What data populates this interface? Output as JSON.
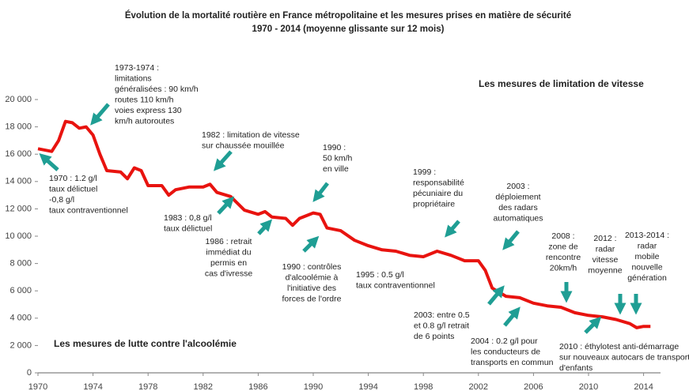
{
  "chart_data": {
    "type": "line",
    "title": [
      "Évolution de la mortalité routière en France métropolitaine et les mesures prises en matière de sécurité",
      "1970 - 2014 (moyenne glissante sur 12 mois)"
    ],
    "x": [
      1970,
      1971,
      1971.5,
      1972,
      1972.5,
      1973,
      1973.5,
      1974,
      1974.5,
      1975,
      1976,
      1976.5,
      1977,
      1977.5,
      1978,
      1979,
      1979.5,
      1980,
      1981,
      1982,
      1982.5,
      1983,
      1984,
      1985,
      1986,
      1986.5,
      1987,
      1988,
      1988.5,
      1989,
      1990,
      1990.5,
      1991,
      1992,
      1993,
      1994,
      1995,
      1996,
      1997,
      1998,
      1999,
      2000,
      2001,
      2002,
      2002.5,
      2003,
      2004,
      2005,
      2006,
      2007,
      2008,
      2009,
      2010,
      2011,
      2012,
      2013,
      2013.5,
      2014,
      2014.5
    ],
    "series": [
      {
        "color": "#e8130f",
        "values": [
          16400,
          16200,
          17000,
          18400,
          18300,
          17900,
          18000,
          17400,
          16000,
          14800,
          14700,
          14200,
          15000,
          14800,
          13700,
          13700,
          13000,
          13400,
          13600,
          13600,
          13800,
          13200,
          12900,
          11900,
          11600,
          11800,
          11400,
          11300,
          10800,
          11300,
          11700,
          11600,
          10600,
          10400,
          9700,
          9300,
          9000,
          8900,
          8600,
          8500,
          8900,
          8600,
          8200,
          8200,
          7500,
          6200,
          5600,
          5500,
          5100,
          4900,
          4800,
          4400,
          4200,
          4100,
          3900,
          3600,
          3300,
          3400,
          3400
        ]
      }
    ],
    "xlim": [
      1970,
      2015
    ],
    "xticks": [
      1970,
      1974,
      1978,
      1982,
      1986,
      1990,
      1994,
      1998,
      2002,
      2006,
      2010,
      2014
    ],
    "ylim": [
      0,
      20000
    ],
    "yticks": [
      0,
      {
        "value": 2000,
        "label": "2 000"
      },
      {
        "value": 4000,
        "label": "4 000"
      },
      {
        "value": 6000,
        "label": "6 000"
      },
      {
        "value": 8000,
        "label": "8 000"
      },
      {
        "value": 10000,
        "label": "10 000"
      },
      {
        "value": 12000,
        "label": "12 000"
      },
      {
        "value": 14000,
        "label": "14 000"
      },
      {
        "value": 16000,
        "label": "16 000"
      },
      {
        "value": 18000,
        "label": "18 000"
      },
      {
        "value": 20000,
        "label": "20 000"
      }
    ],
    "headings": [
      "Les mesures de limitation de vitesse",
      "Les mesures de lutte contre l'alcoolémie"
    ],
    "annotations": [
      [
        "1973-1974 :",
        "limitations",
        "généralisées : 90 km/h",
        "routes 110 km/h",
        "voies express 130",
        "km/h autoroutes"
      ],
      [
        "1982 : limitation de vitesse",
        "sur chaussée mouillée"
      ],
      [
        "1990 :",
        "50 km/h",
        "en ville"
      ],
      [
        "1999 :",
        "responsabilité",
        "pécuniaire du",
        "propriétaire"
      ],
      [
        "2003 :",
        "déploiement",
        "des radars",
        "automatiques"
      ],
      [
        "2008 :",
        "zone de",
        "rencontre",
        "20km/h"
      ],
      [
        "2012 :",
        "radar",
        "vitesse",
        "moyenne"
      ],
      [
        "2013-2014 :",
        "radar",
        "mobile",
        "nouvelle",
        "génération"
      ],
      [
        "1970 : 1.2 g/l",
        "taux délictuel",
        "-0,8 g/l",
        "taux contraventionnel"
      ],
      [
        "1983 : 0,8 g/l",
        "taux délictuel"
      ],
      [
        "1986 : retrait",
        "immédiat du",
        "permis  en",
        "cas d'ivresse"
      ],
      [
        "1990 : contrôles",
        "d'alcoolémie à",
        "l'initiative des",
        "forces de l'ordre"
      ],
      [
        "1995 : 0.5 g/l",
        "taux contraventionnel"
      ],
      [
        "2003: entre 0.5",
        "et 0.8 g/l  retrait",
        "de 6 points"
      ],
      [
        "2004 : 0.2 g/l pour",
        "les conducteurs de",
        "transports en commun"
      ],
      [
        "2010 : éthylotest anti-démarrage",
        "sur nouveaux autocars de transports",
        "d'enfants"
      ]
    ]
  }
}
